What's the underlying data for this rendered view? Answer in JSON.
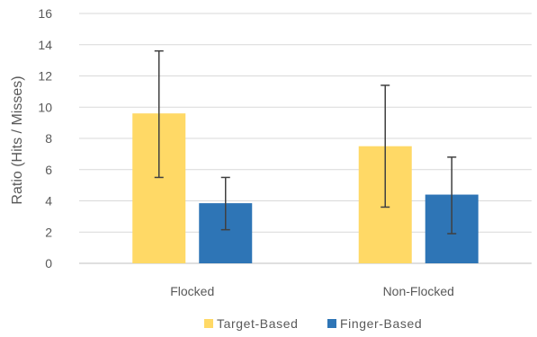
{
  "chart_data": {
    "type": "bar",
    "categories": [
      "Flocked",
      "Non-Flocked"
    ],
    "series": [
      {
        "name": "Target-Based",
        "color": "#FFD966",
        "values": [
          9.6,
          7.5
        ],
        "error_low": [
          5.5,
          3.6
        ],
        "error_high": [
          13.6,
          11.4
        ]
      },
      {
        "name": "Finger-Based",
        "color": "#2E75B6",
        "values": [
          3.85,
          4.4
        ],
        "error_low": [
          2.15,
          1.9
        ],
        "error_high": [
          5.5,
          6.8
        ]
      }
    ],
    "ylabel": "Ratio (Hits / Misses)",
    "xlabel": "",
    "ylim": [
      0,
      16
    ],
    "yticks": [
      0,
      2,
      4,
      6,
      8,
      10,
      12,
      14,
      16
    ],
    "grid": true,
    "legend_position": "bottom"
  }
}
